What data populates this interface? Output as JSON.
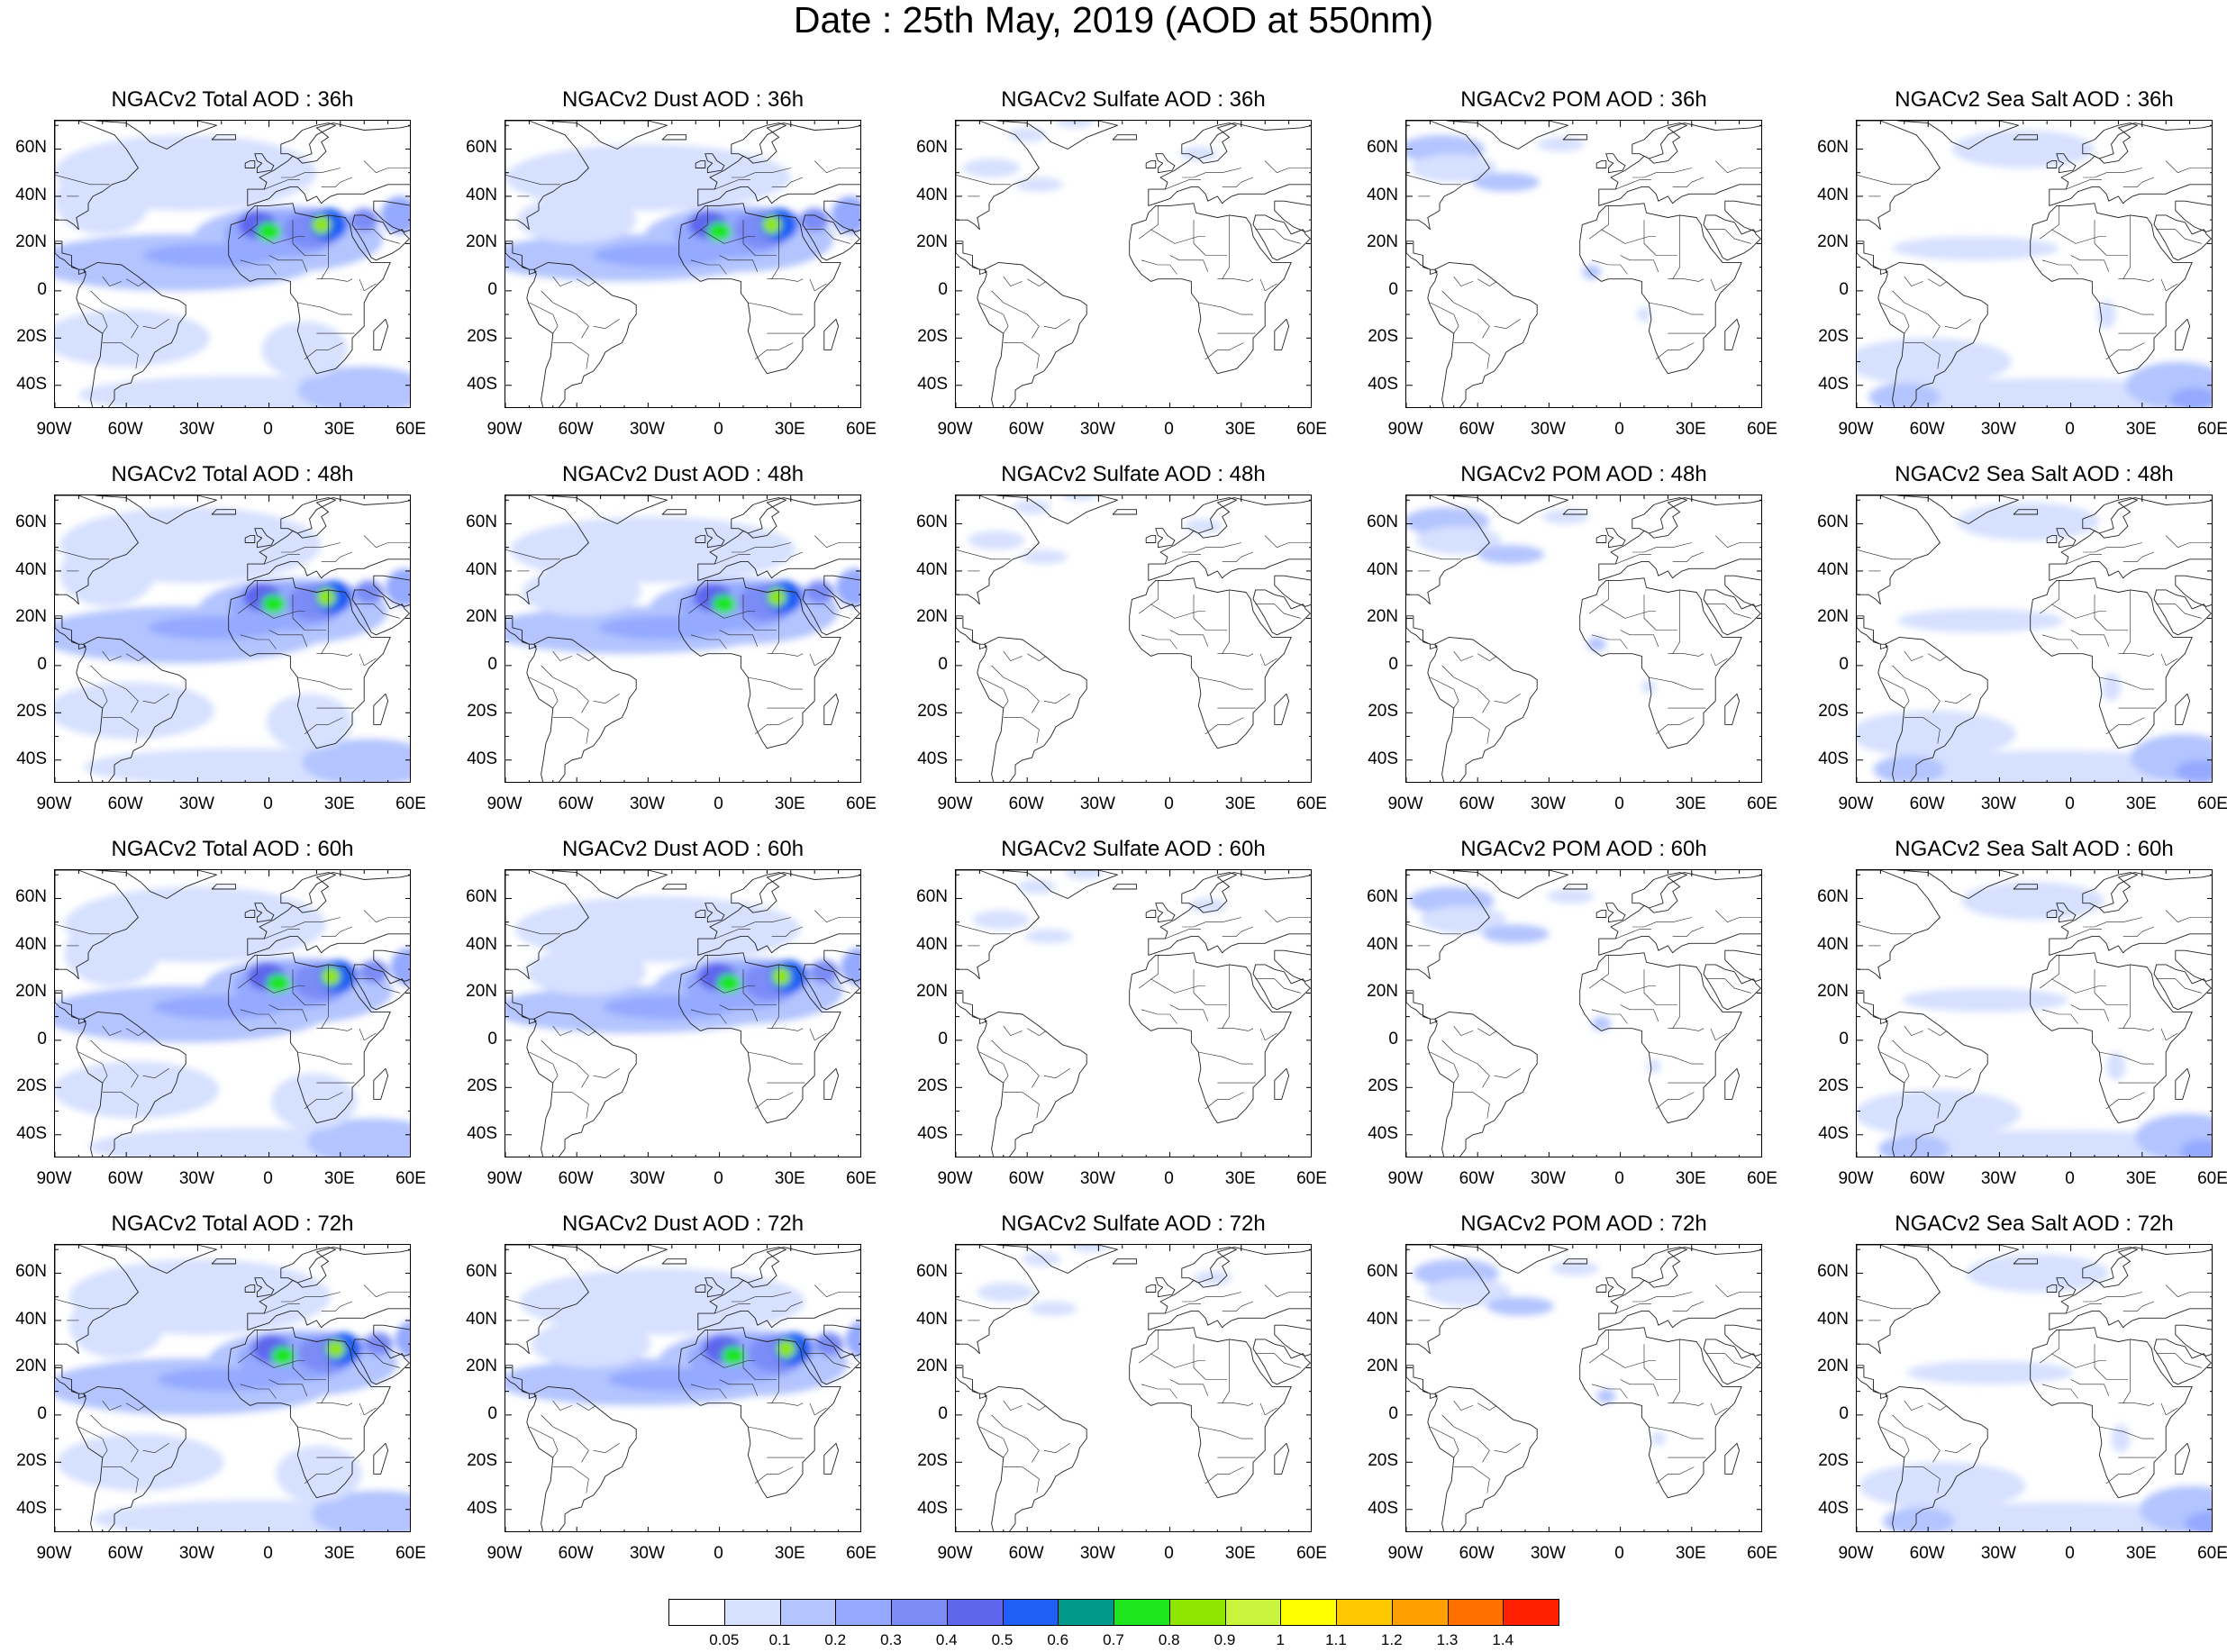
{
  "title": "Date : 25th May, 2019 (AOD at 550nm)",
  "lat_ticks": [
    "60N",
    "40N",
    "20N",
    "0",
    "20S",
    "40S"
  ],
  "lon_ticks": [
    "90W",
    "60W",
    "30W",
    "0",
    "30E",
    "60E"
  ],
  "panels": [
    {
      "title": "NGACv2 Total AOD : 36h",
      "species": "total"
    },
    {
      "title": "NGACv2 Dust AOD : 36h",
      "species": "dust"
    },
    {
      "title": "NGACv2 Sulfate AOD : 36h",
      "species": "sulfate"
    },
    {
      "title": "NGACv2 POM AOD : 36h",
      "species": "pom"
    },
    {
      "title": "NGACv2 Sea Salt AOD : 36h",
      "species": "seasalt"
    },
    {
      "title": "NGACv2 Total AOD : 48h",
      "species": "total"
    },
    {
      "title": "NGACv2 Dust AOD : 48h",
      "species": "dust"
    },
    {
      "title": "NGACv2 Sulfate AOD : 48h",
      "species": "sulfate"
    },
    {
      "title": "NGACv2 POM AOD : 48h",
      "species": "pom"
    },
    {
      "title": "NGACv2 Sea Salt AOD : 48h",
      "species": "seasalt"
    },
    {
      "title": "NGACv2 Total AOD : 60h",
      "species": "total"
    },
    {
      "title": "NGACv2 Dust AOD : 60h",
      "species": "dust"
    },
    {
      "title": "NGACv2 Sulfate AOD : 60h",
      "species": "sulfate"
    },
    {
      "title": "NGACv2 POM AOD : 60h",
      "species": "pom"
    },
    {
      "title": "NGACv2 Sea Salt AOD : 60h",
      "species": "seasalt"
    },
    {
      "title": "NGACv2 Total AOD : 72h",
      "species": "total"
    },
    {
      "title": "NGACv2 Dust AOD : 72h",
      "species": "dust"
    },
    {
      "title": "NGACv2 Sulfate AOD : 72h",
      "species": "sulfate"
    },
    {
      "title": "NGACv2 POM AOD : 72h",
      "species": "pom"
    },
    {
      "title": "NGACv2 Sea Salt  AOD : 72h",
      "species": "seasalt"
    }
  ],
  "colorbar": {
    "labels": [
      "0.05",
      "0.1",
      "0.2",
      "0.3",
      "0.4",
      "0.5",
      "0.6",
      "0.7",
      "0.8",
      "0.9",
      "1",
      "1.1",
      "1.2",
      "1.3",
      "1.4"
    ],
    "colors": [
      "#ffffff",
      "#d6e0ff",
      "#b3c4ff",
      "#94a9ff",
      "#7b8cf7",
      "#5f66ee",
      "#1f5ff5",
      "#00998a",
      "#1ee61e",
      "#8ee600",
      "#c8f53c",
      "#ffff00",
      "#ffc800",
      "#ffa000",
      "#ff7000",
      "#ff2000"
    ]
  }
}
